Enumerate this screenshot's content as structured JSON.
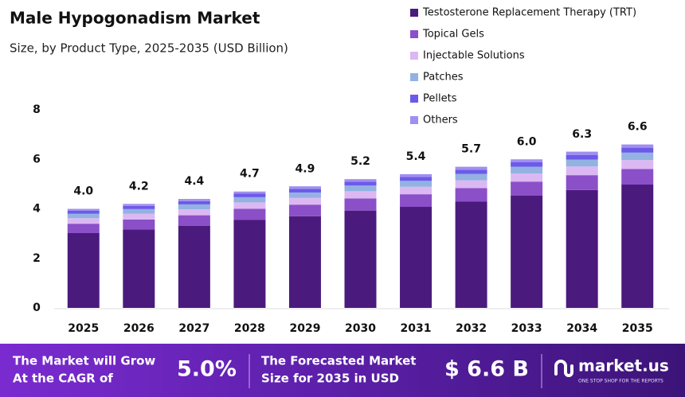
{
  "chart_data": {
    "type": "stacked-bar",
    "title": "Male Hypogonadism Market",
    "subtitle": "Size, by Product Type, 2025-2035 (USD Billion)",
    "categories": [
      "2025",
      "2026",
      "2027",
      "2028",
      "2029",
      "2030",
      "2031",
      "2032",
      "2033",
      "2034",
      "2035"
    ],
    "series": [
      {
        "name": "Testosterone Replacement Therapy (TRT)",
        "color": "#4b1a7d",
        "values": [
          3.02,
          3.17,
          3.32,
          3.55,
          3.7,
          3.93,
          4.08,
          4.3,
          4.53,
          4.76,
          4.98
        ]
      },
      {
        "name": "Topical Gels",
        "color": "#8b4fc8",
        "values": [
          0.38,
          0.4,
          0.42,
          0.45,
          0.47,
          0.49,
          0.51,
          0.54,
          0.57,
          0.6,
          0.63
        ]
      },
      {
        "name": "Injectable Solutions",
        "color": "#dcb8f2",
        "values": [
          0.22,
          0.23,
          0.24,
          0.26,
          0.27,
          0.29,
          0.3,
          0.31,
          0.33,
          0.35,
          0.36
        ]
      },
      {
        "name": "Patches",
        "color": "#93b2e2",
        "values": [
          0.18,
          0.19,
          0.2,
          0.21,
          0.22,
          0.23,
          0.24,
          0.26,
          0.27,
          0.28,
          0.3
        ]
      },
      {
        "name": "Pellets",
        "color": "#6c5ae8",
        "values": [
          0.12,
          0.13,
          0.13,
          0.14,
          0.15,
          0.16,
          0.16,
          0.17,
          0.18,
          0.19,
          0.2
        ]
      },
      {
        "name": "Others",
        "color": "#a08ff0",
        "values": [
          0.08,
          0.08,
          0.09,
          0.09,
          0.1,
          0.1,
          0.11,
          0.12,
          0.12,
          0.13,
          0.13
        ]
      }
    ],
    "totals": {
      "values": [
        4.0,
        4.2,
        4.4,
        4.7,
        4.9,
        5.2,
        5.4,
        5.7,
        6.0,
        6.3,
        6.6
      ],
      "value_labels": [
        "4.0",
        "4.2",
        "4.4",
        "4.7",
        "4.9",
        "5.2",
        "5.4",
        "5.7",
        "6.0",
        "6.3",
        "6.6"
      ]
    },
    "ylim": [
      0,
      8
    ],
    "yticks": [
      0,
      2,
      4,
      6,
      8
    ],
    "grid": false,
    "legend": "top-right"
  },
  "footer": {
    "cagr_text": [
      "The Market will Grow",
      "At the CAGR of"
    ],
    "cagr_value": "5.0%",
    "forecast_text": [
      "The Forecasted Market",
      "Size for 2035 in USD"
    ],
    "forecast_value": "$ 6.6 B",
    "brand": "market.us",
    "tagline": "ONE STOP SHOP FOR THE REPORTS"
  }
}
